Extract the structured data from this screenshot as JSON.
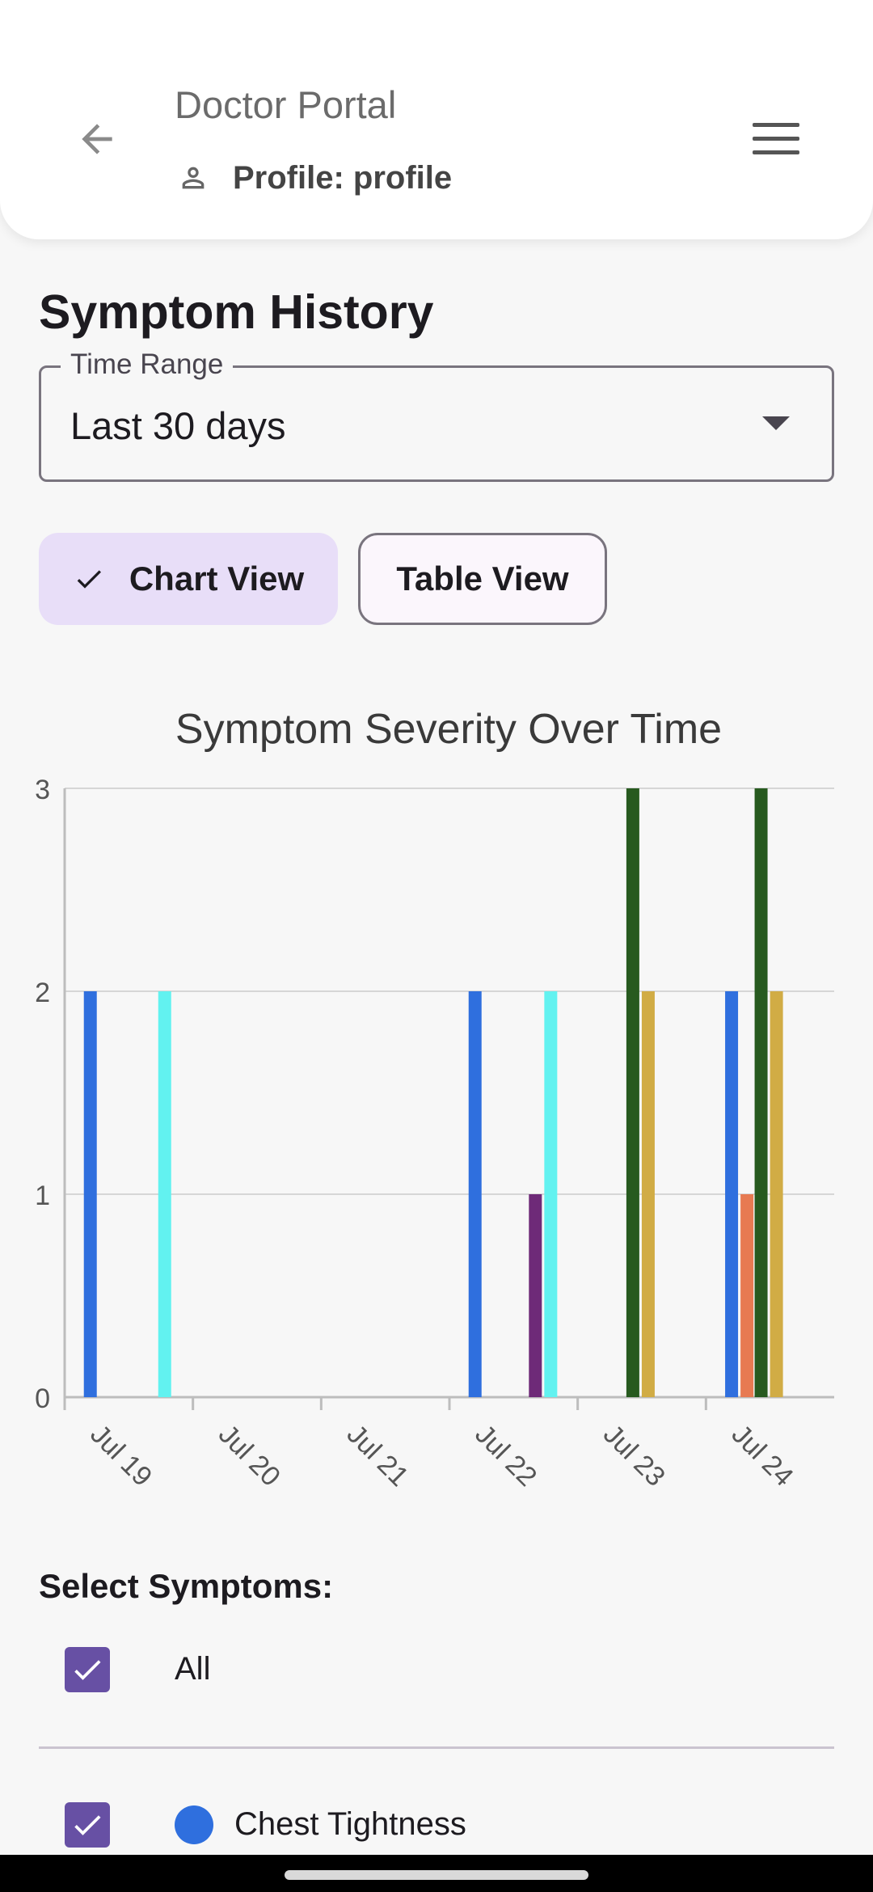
{
  "header": {
    "title": "Doctor Portal",
    "profile_text": "Profile: profile",
    "icons": {
      "back": "arrow-back-icon",
      "profile": "person-outline-icon",
      "menu": "hamburger-menu-icon"
    }
  },
  "page": {
    "title": "Symptom History"
  },
  "time_range": {
    "label": "Time Range",
    "value": "Last 30 days"
  },
  "view_toggle": {
    "chart_label": "Chart View",
    "table_label": "Table View",
    "selected": "Chart View"
  },
  "chart_data": {
    "type": "bar",
    "title": "Symptom Severity Over Time",
    "xlabel": "",
    "ylabel": "",
    "ylim": [
      0,
      3
    ],
    "yticks": [
      "0",
      "1",
      "2",
      "3"
    ],
    "categories": [
      "Jul 19",
      "Jul 20",
      "Jul 21",
      "Jul 22",
      "Jul 23",
      "Jul 24"
    ],
    "grid": true,
    "bars": [
      {
        "day": 0.2,
        "value": 2,
        "color": "#2f6fde"
      },
      {
        "day": 0.78,
        "value": 2,
        "color": "#62f2f0"
      },
      {
        "day": 3.2,
        "value": 2,
        "color": "#2f6fde"
      },
      {
        "day": 3.67,
        "value": 1,
        "color": "#6e2a78"
      },
      {
        "day": 3.79,
        "value": 2,
        "color": "#62f2f0"
      },
      {
        "day": 4.43,
        "value": 3,
        "color": "#275a1f"
      },
      {
        "day": 4.55,
        "value": 2,
        "color": "#d1ac45"
      },
      {
        "day": 5.2,
        "value": 2,
        "color": "#2f6fde"
      },
      {
        "day": 5.32,
        "value": 1,
        "color": "#e77a52"
      },
      {
        "day": 5.43,
        "value": 3,
        "color": "#275a1f"
      },
      {
        "day": 5.55,
        "value": 2,
        "color": "#d1ac45"
      }
    ]
  },
  "symptom_select": {
    "label": "Select Symptoms:",
    "all_label": "All",
    "items": [
      {
        "label": "Chest Tightness",
        "color": "#2f6fde",
        "checked": true
      }
    ]
  },
  "colors": {
    "accent": "#6750a4",
    "chip_selected": "#e8def8"
  }
}
